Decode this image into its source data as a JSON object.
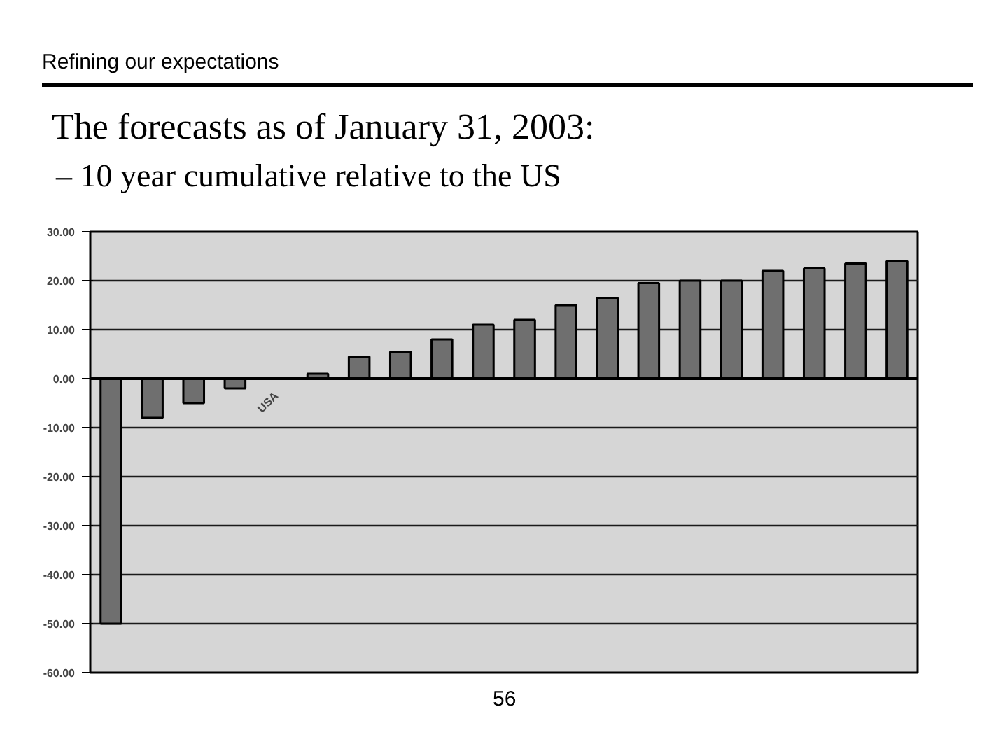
{
  "chart_data": {
    "type": "bar",
    "title": "The forecasts as of January 31, 2003:",
    "subtitle": "– 10 year cumulative relative to the US",
    "annotations": [
      "Refining our expectations",
      "56"
    ],
    "categories": [
      null,
      null,
      null,
      null,
      "USA",
      null,
      null,
      null,
      null,
      null,
      null,
      null,
      null,
      null,
      null,
      null,
      null,
      null,
      null,
      null
    ],
    "values": [
      -50,
      -8,
      -5,
      -2,
      0,
      1,
      4.5,
      5.5,
      8,
      11,
      12,
      15,
      16.5,
      19.5,
      20,
      20,
      22,
      22.5,
      23.5,
      24
    ],
    "color": "#6f6f6f",
    "ylim": [
      -60,
      30
    ],
    "yticks": [
      {
        "value": -60,
        "label": "-60.00"
      },
      {
        "value": -50,
        "label": "-50.00"
      },
      {
        "value": -40,
        "label": "-40.00"
      },
      {
        "value": -30,
        "label": "-30.00"
      },
      {
        "value": -20,
        "label": "-20.00"
      },
      {
        "value": -10,
        "label": "-10.00"
      },
      {
        "value": 0,
        "label": "0.00"
      },
      {
        "value": 10,
        "label": "10.00"
      },
      {
        "value": 20,
        "label": "20.00"
      },
      {
        "value": 30,
        "label": "30.00"
      }
    ],
    "grid": "y"
  }
}
